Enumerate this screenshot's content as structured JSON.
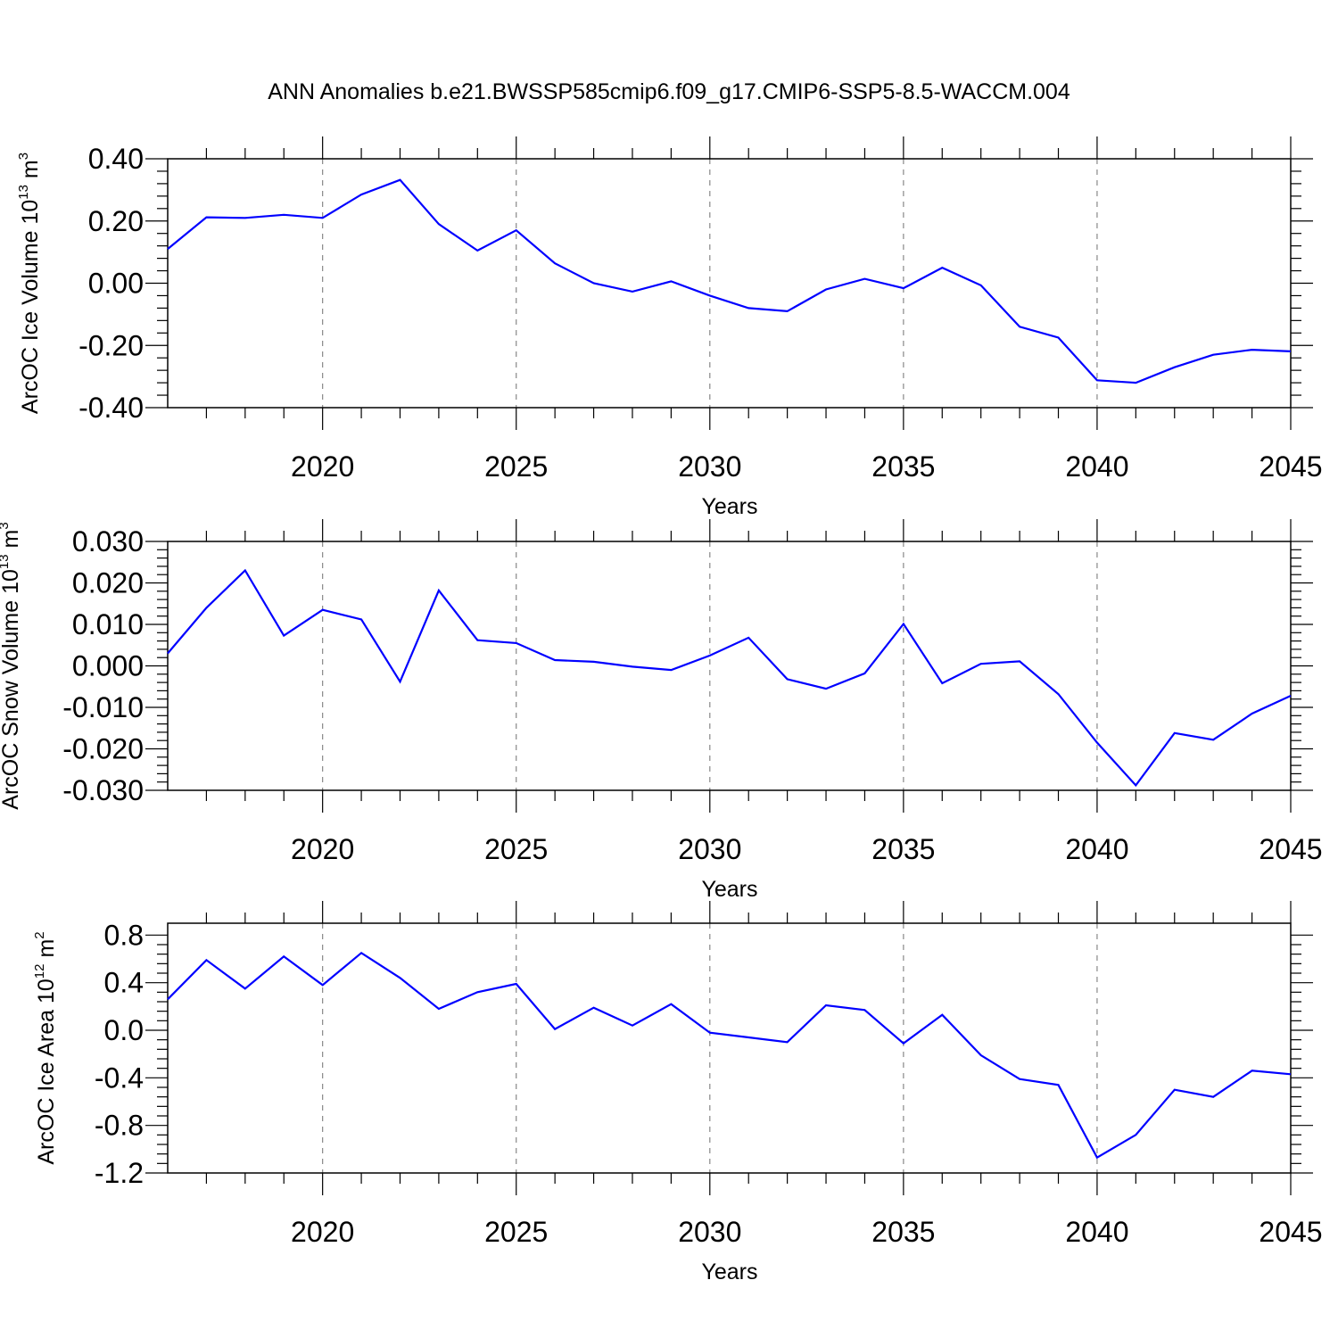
{
  "title": "ANN Anomalies b.e21.BWSSP585cmip6.f09_g17.CMIP6-SSP5-8.5-WACCM.004",
  "line_color": "#0000ff",
  "chart_data": [
    {
      "type": "line",
      "xlabel": "Years",
      "ylabel_main": "ArcOC Ice Volume 10",
      "ylabel_sup1": "13",
      "ylabel_mid": " m",
      "ylabel_sup2": "3",
      "xlim": [
        2016,
        2045
      ],
      "ylim": [
        -0.4,
        0.4
      ],
      "x_ticks": [
        2020,
        2025,
        2030,
        2035,
        2040,
        2045
      ],
      "x_tick_labels": [
        "2020",
        "2025",
        "2030",
        "2035",
        "2040",
        "2045"
      ],
      "y_ticks": [
        -0.4,
        -0.2,
        0.0,
        0.2,
        0.4
      ],
      "y_tick_labels": [
        "-0.40",
        "-0.20",
        "0.00",
        "0.20",
        "0.40"
      ],
      "y_minor_step": 0.04,
      "grid": "vertical dashed at major x ticks",
      "x": [
        2016,
        2017,
        2018,
        2019,
        2020,
        2021,
        2022,
        2023,
        2024,
        2025,
        2026,
        2027,
        2028,
        2029,
        2030,
        2031,
        2032,
        2033,
        2034,
        2035,
        2036,
        2037,
        2038,
        2039,
        2040,
        2041,
        2042,
        2043,
        2044,
        2045
      ],
      "y": [
        0.11,
        0.212,
        0.21,
        0.22,
        0.21,
        0.285,
        0.332,
        0.19,
        0.105,
        0.17,
        0.064,
        0.0,
        -0.027,
        0.006,
        -0.04,
        -0.08,
        -0.09,
        -0.02,
        0.014,
        -0.016,
        0.05,
        -0.007,
        -0.14,
        -0.175,
        -0.312,
        -0.32,
        -0.27,
        -0.23,
        -0.214,
        -0.219
      ]
    },
    {
      "type": "line",
      "xlabel": "Years",
      "ylabel_main": "ArcOC Snow Volume 10",
      "ylabel_sup1": "13",
      "ylabel_mid": " m",
      "ylabel_sup2": "3",
      "xlim": [
        2016,
        2045
      ],
      "ylim": [
        -0.03,
        0.03
      ],
      "x_ticks": [
        2020,
        2025,
        2030,
        2035,
        2040,
        2045
      ],
      "x_tick_labels": [
        "2020",
        "2025",
        "2030",
        "2035",
        "2040",
        "2045"
      ],
      "y_ticks": [
        -0.03,
        -0.02,
        -0.01,
        0.0,
        0.01,
        0.02,
        0.03
      ],
      "y_tick_labels": [
        "-0.030",
        "-0.020",
        "-0.010",
        "0.000",
        "0.010",
        "0.020",
        "0.030"
      ],
      "y_minor_step": 0.002,
      "grid": "vertical dashed at major x ticks",
      "x": [
        2016,
        2017,
        2018,
        2019,
        2020,
        2021,
        2022,
        2023,
        2024,
        2025,
        2026,
        2027,
        2028,
        2029,
        2030,
        2031,
        2032,
        2033,
        2034,
        2035,
        2036,
        2037,
        2038,
        2039,
        2040,
        2041,
        2042,
        2043,
        2044,
        2045
      ],
      "y": [
        0.003,
        0.014,
        0.023,
        0.0073,
        0.0135,
        0.0112,
        -0.0038,
        0.0182,
        0.0062,
        0.0055,
        0.0014,
        0.001,
        -0.0002,
        -0.001,
        0.0025,
        0.0068,
        -0.0032,
        -0.0055,
        -0.0018,
        0.0101,
        -0.0042,
        0.0005,
        0.0011,
        -0.0068,
        -0.0185,
        -0.0288,
        -0.0162,
        -0.0178,
        -0.0115,
        -0.0072
      ]
    },
    {
      "type": "line",
      "xlabel": "Years",
      "ylabel_main": "ArcOC Ice Area 10",
      "ylabel_sup1": "12",
      "ylabel_mid": " m",
      "ylabel_sup2": "2",
      "xlim": [
        2016,
        2045
      ],
      "ylim": [
        -1.2,
        0.9
      ],
      "x_ticks": [
        2020,
        2025,
        2030,
        2035,
        2040,
        2045
      ],
      "x_tick_labels": [
        "2020",
        "2025",
        "2030",
        "2035",
        "2040",
        "2045"
      ],
      "y_ticks": [
        -1.2,
        -0.8,
        -0.4,
        0.0,
        0.4,
        0.8
      ],
      "y_tick_labels": [
        "-1.2",
        "-0.8",
        "-0.4",
        "0.0",
        "0.4",
        "0.8"
      ],
      "y_minor_step": 0.08,
      "grid": "vertical dashed at major x ticks",
      "x": [
        2016,
        2017,
        2018,
        2019,
        2020,
        2021,
        2022,
        2023,
        2024,
        2025,
        2026,
        2027,
        2028,
        2029,
        2030,
        2031,
        2032,
        2033,
        2034,
        2035,
        2036,
        2037,
        2038,
        2039,
        2040,
        2041,
        2042,
        2043,
        2044,
        2045
      ],
      "y": [
        0.26,
        0.59,
        0.35,
        0.62,
        0.38,
        0.65,
        0.44,
        0.18,
        0.32,
        0.39,
        0.01,
        0.19,
        0.04,
        0.22,
        -0.02,
        -0.06,
        -0.1,
        0.21,
        0.17,
        -0.11,
        0.13,
        -0.21,
        -0.41,
        -0.46,
        -1.07,
        -0.88,
        -0.5,
        -0.56,
        -0.34,
        -0.37
      ]
    }
  ]
}
